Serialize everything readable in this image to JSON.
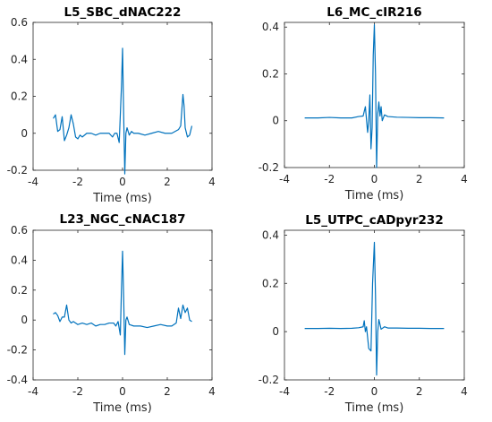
{
  "chart_data": [
    {
      "type": "line",
      "title": "L5_SBC_dNAC222",
      "xlabel": "Time (ms)",
      "ylabel": "",
      "xlim": [
        -4,
        4
      ],
      "ylim": [
        -0.2,
        0.6
      ],
      "xticks": [
        -4,
        -2,
        0,
        2,
        4
      ],
      "yticks": [
        -0.2,
        0,
        0.2,
        0.4,
        0.6
      ],
      "xtick_labels": [
        "-4",
        "-2",
        "0",
        "2",
        "4"
      ],
      "ytick_labels": [
        "-0.2",
        "0",
        "0.2",
        "0.4",
        "0.6"
      ],
      "grid": false,
      "color": "#0072BD",
      "series": [
        {
          "x": [
            -3.1,
            -3.0,
            -2.9,
            -2.8,
            -2.7,
            -2.6,
            -2.5,
            -2.4,
            -2.3,
            -2.2,
            -2.1,
            -2.0,
            -1.9,
            -1.8,
            -1.6,
            -1.4,
            -1.2,
            -1.0,
            -0.8,
            -0.6,
            -0.45,
            -0.35,
            -0.25,
            -0.15,
            -0.05,
            0.0,
            0.05,
            0.1,
            0.15,
            0.2,
            0.3,
            0.4,
            0.5,
            0.7,
            1.0,
            1.3,
            1.6,
            1.9,
            2.2,
            2.5,
            2.6,
            2.7,
            2.75,
            2.8,
            2.9,
            3.0,
            3.1
          ],
          "y": [
            0.08,
            0.1,
            0.01,
            0.02,
            0.09,
            -0.04,
            -0.01,
            0.03,
            0.1,
            0.05,
            -0.02,
            -0.03,
            -0.01,
            -0.02,
            0.0,
            0.0,
            -0.01,
            0.0,
            0.0,
            0.0,
            -0.02,
            0.0,
            0.0,
            -0.05,
            0.25,
            0.46,
            0.1,
            -0.22,
            0.0,
            0.03,
            -0.01,
            0.01,
            0.0,
            0.0,
            -0.01,
            0.0,
            0.01,
            0.0,
            0.0,
            0.02,
            0.04,
            0.21,
            0.15,
            0.03,
            -0.02,
            -0.01,
            0.04
          ]
        }
      ]
    },
    {
      "type": "line",
      "title": "L6_MC_cIR216",
      "xlabel": "Time (ms)",
      "ylabel": "",
      "xlim": [
        -4,
        4
      ],
      "ylim": [
        -0.2,
        0.42
      ],
      "xticks": [
        -4,
        -2,
        0,
        2,
        4
      ],
      "yticks": [
        -0.2,
        0,
        0.2,
        0.4
      ],
      "xtick_labels": [
        "-4",
        "-2",
        "0",
        "2",
        "4"
      ],
      "ytick_labels": [
        "-0.2",
        "0",
        "0.2",
        "0.4"
      ],
      "grid": false,
      "color": "#0072BD",
      "series": [
        {
          "x": [
            -3.1,
            -2.5,
            -2.0,
            -1.5,
            -1.0,
            -0.7,
            -0.5,
            -0.4,
            -0.3,
            -0.25,
            -0.2,
            -0.15,
            -0.1,
            -0.05,
            0.0,
            0.05,
            0.1,
            0.15,
            0.2,
            0.25,
            0.3,
            0.35,
            0.45,
            0.6,
            1.0,
            1.5,
            2.0,
            2.5,
            3.1
          ],
          "y": [
            0.012,
            0.012,
            0.014,
            0.012,
            0.012,
            0.018,
            0.02,
            0.06,
            -0.05,
            0.0,
            0.11,
            -0.12,
            -0.03,
            0.28,
            0.41,
            0.2,
            -0.2,
            0.03,
            0.08,
            0.02,
            0.06,
            0.0,
            0.025,
            0.018,
            0.015,
            0.014,
            0.013,
            0.013,
            0.012
          ]
        }
      ]
    },
    {
      "type": "line",
      "title": "L23_NGC_cNAC187",
      "xlabel": "Time (ms)",
      "ylabel": "",
      "xlim": [
        -4,
        4
      ],
      "ylim": [
        -0.4,
        0.6
      ],
      "xticks": [
        -4,
        -2,
        0,
        2,
        4
      ],
      "yticks": [
        -0.4,
        -0.2,
        0,
        0.2,
        0.4,
        0.6
      ],
      "xtick_labels": [
        "-4",
        "-2",
        "0",
        "2",
        "4"
      ],
      "ytick_labels": [
        "-0.4",
        "-0.2",
        "0",
        "0.2",
        "0.4",
        "0.6"
      ],
      "grid": false,
      "color": "#0072BD",
      "series": [
        {
          "x": [
            -3.1,
            -3.0,
            -2.9,
            -2.8,
            -2.7,
            -2.6,
            -2.5,
            -2.4,
            -2.3,
            -2.2,
            -2.0,
            -1.8,
            -1.6,
            -1.4,
            -1.2,
            -1.0,
            -0.8,
            -0.6,
            -0.4,
            -0.3,
            -0.2,
            -0.1,
            -0.05,
            0.0,
            0.05,
            0.1,
            0.15,
            0.2,
            0.3,
            0.5,
            0.8,
            1.1,
            1.4,
            1.7,
            2.0,
            2.2,
            2.4,
            2.5,
            2.6,
            2.7,
            2.8,
            2.9,
            3.0,
            3.1
          ],
          "y": [
            0.04,
            0.05,
            0.03,
            -0.01,
            0.02,
            0.02,
            0.1,
            0.0,
            -0.02,
            -0.01,
            -0.03,
            -0.02,
            -0.03,
            -0.02,
            -0.04,
            -0.03,
            -0.03,
            -0.02,
            -0.02,
            -0.04,
            -0.01,
            -0.1,
            0.2,
            0.46,
            0.15,
            -0.23,
            0.0,
            0.02,
            -0.03,
            -0.04,
            -0.04,
            -0.05,
            -0.04,
            -0.03,
            -0.04,
            -0.04,
            -0.02,
            0.08,
            0.01,
            0.1,
            0.05,
            0.08,
            0.0,
            -0.01
          ]
        }
      ]
    },
    {
      "type": "line",
      "title": "L5_UTPC_cADpyr232",
      "xlabel": "Time (ms)",
      "ylabel": "",
      "xlim": [
        -4,
        4
      ],
      "ylim": [
        -0.2,
        0.42
      ],
      "xticks": [
        -4,
        -2,
        0,
        2,
        4
      ],
      "yticks": [
        -0.2,
        0,
        0.2,
        0.4
      ],
      "xtick_labels": [
        "-4",
        "-2",
        "0",
        "2",
        "4"
      ],
      "ytick_labels": [
        "-0.2",
        "0",
        "0.2",
        "0.4"
      ],
      "grid": false,
      "color": "#0072BD",
      "series": [
        {
          "x": [
            -3.1,
            -2.5,
            -2.0,
            -1.5,
            -1.0,
            -0.7,
            -0.5,
            -0.45,
            -0.4,
            -0.35,
            -0.25,
            -0.15,
            -0.08,
            0.0,
            0.05,
            0.1,
            0.15,
            0.2,
            0.3,
            0.45,
            0.6,
            1.0,
            1.5,
            2.0,
            2.5,
            3.1
          ],
          "y": [
            0.013,
            0.013,
            0.014,
            0.013,
            0.014,
            0.016,
            0.02,
            0.045,
            0.0,
            0.02,
            -0.07,
            -0.08,
            0.2,
            0.37,
            0.15,
            -0.18,
            0.0,
            0.05,
            0.01,
            0.02,
            0.015,
            0.015,
            0.014,
            0.014,
            0.013,
            0.013
          ]
        }
      ]
    }
  ]
}
